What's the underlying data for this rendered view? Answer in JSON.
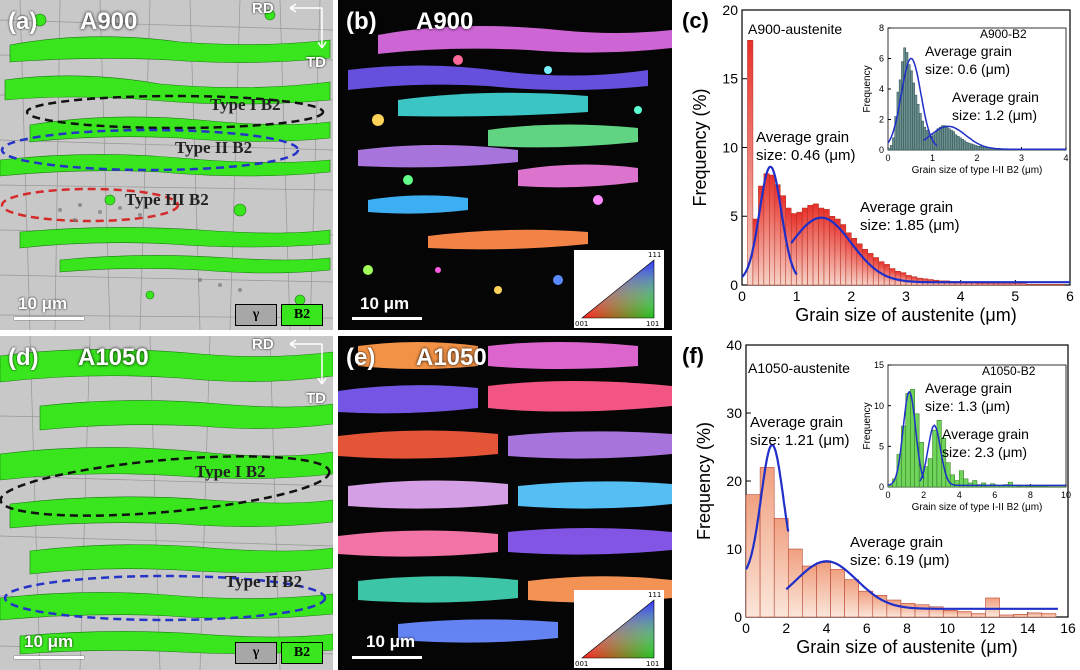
{
  "panels": {
    "a": {
      "label": "(a)",
      "title": "A900",
      "scale": "10 μm",
      "rd": "RD",
      "td": "TD",
      "types": [
        "Type I B2",
        "Type II B2",
        "Type III B2"
      ],
      "legend": [
        "γ",
        "B2"
      ]
    },
    "b": {
      "label": "(b)",
      "title": "A900",
      "scale": "10 μm"
    },
    "d": {
      "label": "(d)",
      "title": "A1050",
      "scale": "10 μm",
      "rd": "RD",
      "td": "TD",
      "types": [
        "Type I B2",
        "Type II B2"
      ],
      "legend": [
        "γ",
        "B2"
      ]
    },
    "e": {
      "label": "(e)",
      "title": "A1050",
      "scale": "10 μm"
    },
    "ipf": {
      "c001": "001",
      "c101": "101",
      "c111": "111"
    }
  },
  "colors": {
    "austenite_gray": "#c8c8c8",
    "b2_green": "#39e61e",
    "fit_blue": "#1f2fc8",
    "bar_red": "#e23b2e",
    "bar_peach": "#f2a58a",
    "inset_bar_gray": "#6b8f8f",
    "inset_bar_green": "#6fd45a"
  },
  "chart_data": [
    {
      "id": "c",
      "panel_label": "(c)",
      "type": "bar",
      "series_name": "A900-austenite",
      "xlabel": "Grain size of austenite (μm)",
      "ylabel": "Frequency (%)",
      "xlim": [
        0,
        6
      ],
      "ylim": [
        0,
        20
      ],
      "xticks": [
        0,
        1,
        2,
        3,
        4,
        5,
        6
      ],
      "yticks": [
        0,
        5,
        10,
        15,
        20
      ],
      "bin_width": 0.1,
      "x": [
        0.15,
        0.25,
        0.35,
        0.45,
        0.55,
        0.65,
        0.75,
        0.85,
        0.95,
        1.05,
        1.15,
        1.25,
        1.35,
        1.45,
        1.55,
        1.65,
        1.75,
        1.85,
        1.95,
        2.05,
        2.15,
        2.25,
        2.35,
        2.45,
        2.55,
        2.65,
        2.75,
        2.85,
        2.95,
        3.05,
        3.15,
        3.25,
        3.35,
        3.45,
        3.55,
        3.65,
        3.75,
        3.85,
        3.95,
        4.05,
        4.15,
        4.25,
        4.35,
        4.45,
        4.55,
        4.65,
        4.75,
        4.85,
        4.95,
        5.05,
        5.15,
        5.25,
        5.35,
        5.45,
        5.55,
        5.65,
        5.75,
        5.85
      ],
      "values": [
        17.8,
        4.8,
        7.2,
        8.1,
        8.0,
        7.3,
        6.5,
        5.6,
        5.2,
        5.3,
        5.6,
        5.8,
        5.9,
        5.6,
        5.5,
        5.0,
        4.8,
        4.4,
        3.8,
        3.4,
        3.0,
        2.6,
        2.3,
        2.0,
        1.7,
        1.5,
        1.2,
        1.0,
        0.9,
        0.7,
        0.6,
        0.5,
        0.45,
        0.4,
        0.35,
        0.3,
        0.3,
        0.25,
        0.25,
        0.2,
        0.2,
        0.2,
        0.15,
        0.15,
        0.15,
        0.1,
        0.1,
        0.1,
        0.1,
        0.1,
        0.1,
        0.05,
        0.05,
        0.05,
        0.05,
        0.05,
        0.05,
        0.05
      ],
      "fits": [
        {
          "label": [
            "Average grain",
            "size: 0.46 (μm)"
          ],
          "mean": 0.52,
          "sigma": 0.2,
          "amp": 8.3,
          "base": 0.3,
          "range": [
            0.0,
            1.0
          ]
        },
        {
          "label": [
            "Average grain",
            "size: 1.85 (μm)"
          ],
          "mean": 1.45,
          "sigma": 0.55,
          "amp": 4.7,
          "base": 0.2,
          "range": [
            0.9,
            6.0
          ]
        }
      ],
      "inset": {
        "series_name": "A900-B2",
        "xlabel": "Grain size of type I-II B2 (μm)",
        "ylabel": "Frequency",
        "xlim": [
          0,
          4
        ],
        "ylim": [
          0,
          8
        ],
        "xticks": [
          0,
          1,
          2,
          3,
          4
        ],
        "yticks": [
          0,
          2,
          4,
          6,
          8
        ],
        "bin_width": 0.05,
        "values": [
          0.1,
          0.3,
          0.8,
          2.2,
          3.8,
          4.6,
          5.8,
          6.7,
          6.4,
          5.6,
          5.2,
          4.4,
          3.6,
          3.0,
          2.4,
          1.9,
          1.5,
          1.3,
          1.1,
          0.9,
          1.0,
          1.2,
          1.4,
          1.5,
          1.6,
          1.6,
          1.5,
          1.4,
          1.3,
          1.2,
          1.0,
          0.9,
          0.8,
          0.7,
          0.6,
          0.5,
          0.45,
          0.4,
          0.35,
          0.3,
          0.25,
          0.25,
          0.2,
          0.2,
          0.15,
          0.15,
          0.12,
          0.1,
          0.1,
          0.1,
          0.08,
          0.08,
          0.06,
          0.06,
          0.05,
          0.05,
          0.05,
          0.04,
          0.04,
          0.04,
          0.03,
          0.03,
          0.03,
          0.03,
          0.02,
          0.02,
          0.02,
          0.02,
          0.02,
          0.02,
          0.02,
          0.01,
          0.01,
          0.01,
          0.01,
          0.01,
          0.01,
          0.01,
          0.01,
          0.01
        ],
        "fits": [
          {
            "label": [
              "Average grain",
              "size: 0.6 (μm)"
            ],
            "mean": 0.52,
            "sigma": 0.22,
            "amp": 5.9,
            "base": 0.1,
            "range": [
              0.0,
              1.1
            ]
          },
          {
            "label": [
              "Average grain",
              "size: 1.2 (μm)"
            ],
            "mean": 1.35,
            "sigma": 0.4,
            "amp": 1.5,
            "base": 0.05,
            "range": [
              0.8,
              4.0
            ]
          }
        ]
      }
    },
    {
      "id": "f",
      "panel_label": "(f)",
      "type": "bar",
      "series_name": "A1050-austenite",
      "xlabel": "Grain size of austenite (μm)",
      "ylabel": "Frequency (%)",
      "xlim": [
        0,
        16
      ],
      "ylim": [
        0,
        40
      ],
      "xticks": [
        0,
        2,
        4,
        6,
        8,
        10,
        12,
        14,
        16
      ],
      "yticks": [
        0,
        10,
        20,
        30,
        40
      ],
      "bin_width": 0.7,
      "x": [
        0.35,
        1.05,
        1.75,
        2.45,
        3.15,
        3.85,
        4.55,
        5.25,
        5.95,
        6.65,
        7.35,
        8.05,
        8.75,
        9.45,
        10.15,
        10.85,
        11.55,
        12.25,
        12.95,
        13.65,
        14.35,
        15.05
      ],
      "values": [
        18.0,
        22.0,
        14.5,
        10.0,
        7.5,
        8.0,
        7.0,
        5.5,
        3.8,
        3.2,
        2.5,
        2.0,
        1.8,
        1.5,
        1.0,
        0.8,
        0.5,
        2.8,
        0.3,
        0.4,
        0.6,
        0.5
      ],
      "fits": [
        {
          "label": [
            "Average grain",
            "size: 1.21 (μm)"
          ],
          "mean": 1.3,
          "sigma": 0.55,
          "amp": 19.5,
          "base": 5.8,
          "range": [
            0.0,
            2.1
          ]
        },
        {
          "label": [
            "Average grain",
            "size: 6.19 (μm)"
          ],
          "mean": 4.0,
          "sigma": 1.5,
          "amp": 7.0,
          "base": 1.2,
          "range": [
            2.0,
            15.5
          ]
        }
      ],
      "inset": {
        "series_name": "A1050-B2",
        "xlabel": "Grain size of type I-II B2 (μm)",
        "ylabel": "Frequency",
        "xlim": [
          0,
          10
        ],
        "ylim": [
          0,
          15
        ],
        "xticks": [
          0,
          2,
          4,
          6,
          8,
          10
        ],
        "yticks": [
          0,
          5,
          10,
          15
        ],
        "bin_width": 0.25,
        "values": [
          0.2,
          1.0,
          4.0,
          7.5,
          11.5,
          12.0,
          9.0,
          5.5,
          2.5,
          3.5,
          7.0,
          8.2,
          6.0,
          3.0,
          1.5,
          0.8,
          2.0,
          1.0,
          0.5,
          0.8,
          0.3,
          0.5,
          0.2,
          0.4,
          0.2,
          0.2,
          0.3,
          0.6,
          0.2,
          0.1,
          0.2,
          0.1,
          0.1,
          0.1,
          0.1,
          0.1,
          0.05,
          0.05,
          0.05,
          0.05
        ],
        "fits": [
          {
            "label": [
              "Average grain",
              "size: 1.3 (μm)"
            ],
            "mean": 1.2,
            "sigma": 0.35,
            "amp": 11.5,
            "base": 0.2,
            "range": [
              0.0,
              2.0
            ]
          },
          {
            "label": [
              "Average grain",
              "size: 2.3 (μm)"
            ],
            "mean": 2.6,
            "sigma": 0.35,
            "amp": 7.4,
            "base": 0.2,
            "range": [
              1.8,
              10.0
            ]
          }
        ]
      }
    }
  ]
}
